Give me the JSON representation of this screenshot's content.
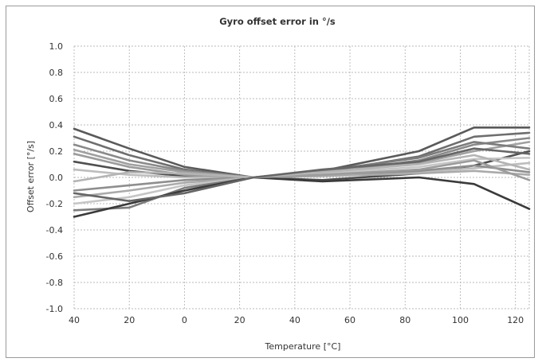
{
  "chart_data": {
    "type": "line",
    "title": "Gyro offset error in °/s",
    "xlabel": "Temperature  [°C]",
    "ylabel": "Offset error [°/s]",
    "x_tick_labels": [
      "40",
      "20",
      "0",
      "20",
      "40",
      "60",
      "80",
      "100",
      "120"
    ],
    "x_tick_values": [
      -40,
      -20,
      0,
      20,
      40,
      60,
      80,
      100,
      120
    ],
    "y_tick_labels": [
      "1.0",
      "0.8",
      "0.6",
      "0.4",
      "0.2",
      "0.0",
      "-0.2",
      "-0.4",
      "-0.6",
      "-0.8",
      "-1.0"
    ],
    "y_tick_values": [
      1.0,
      0.8,
      0.6,
      0.4,
      0.2,
      0.0,
      -0.2,
      -0.4,
      -0.6,
      -0.8,
      -1.0
    ],
    "xlim": [
      -40,
      125
    ],
    "ylim": [
      -1.0,
      1.0
    ],
    "grid": true,
    "legend": "none",
    "x": [
      -40,
      -20,
      0,
      25,
      50,
      85,
      105,
      125
    ],
    "series": [
      {
        "color": "#5a5a5a",
        "values": [
          0.37,
          0.22,
          0.08,
          0.0,
          0.05,
          0.2,
          0.38,
          0.38
        ]
      },
      {
        "color": "#6e6e6e",
        "values": [
          0.31,
          0.17,
          0.06,
          0.0,
          0.04,
          0.16,
          0.31,
          0.34
        ]
      },
      {
        "color": "#8a8a8a",
        "values": [
          0.25,
          0.13,
          0.05,
          0.0,
          0.03,
          0.13,
          0.25,
          0.3
        ]
      },
      {
        "color": "#a0a0a0",
        "values": [
          0.21,
          0.1,
          0.04,
          0.0,
          0.03,
          0.11,
          0.2,
          0.27
        ]
      },
      {
        "color": "#4f4f4f",
        "values": [
          0.12,
          0.05,
          0.01,
          0.0,
          -0.02,
          0.03,
          0.09,
          0.2
        ]
      },
      {
        "color": "#bdbdbd",
        "values": [
          0.06,
          0.02,
          0.0,
          0.0,
          0.01,
          0.04,
          0.07,
          0.11
        ]
      },
      {
        "color": "#8e8e8e",
        "values": [
          -0.1,
          -0.06,
          -0.02,
          0.0,
          0.02,
          0.05,
          0.09,
          0.04
        ]
      },
      {
        "color": "#aaaaaa",
        "values": [
          -0.15,
          -0.1,
          -0.04,
          0.0,
          0.01,
          0.03,
          0.05,
          0.02
        ]
      },
      {
        "color": "#c6c6c6",
        "values": [
          -0.2,
          -0.15,
          -0.06,
          0.0,
          0.03,
          0.08,
          0.14,
          0.15
        ]
      },
      {
        "color": "#7c7c7c",
        "values": [
          -0.25,
          -0.23,
          -0.08,
          0.0,
          0.05,
          0.15,
          0.27,
          0.22
        ]
      },
      {
        "color": "#3a3a3a",
        "values": [
          -0.3,
          -0.2,
          -0.1,
          0.0,
          -0.03,
          0.0,
          -0.05,
          -0.24
        ]
      },
      {
        "color": "#9c9c9c",
        "values": [
          0.18,
          0.08,
          0.02,
          0.0,
          0.02,
          0.06,
          0.13,
          -0.02
        ]
      },
      {
        "color": "#b4b4b4",
        "values": [
          -0.03,
          0.04,
          0.03,
          0.0,
          0.04,
          0.1,
          0.17,
          0.06
        ]
      },
      {
        "color": "#666666",
        "values": [
          -0.12,
          -0.18,
          -0.12,
          0.0,
          0.06,
          0.12,
          0.22,
          0.18
        ]
      }
    ]
  }
}
